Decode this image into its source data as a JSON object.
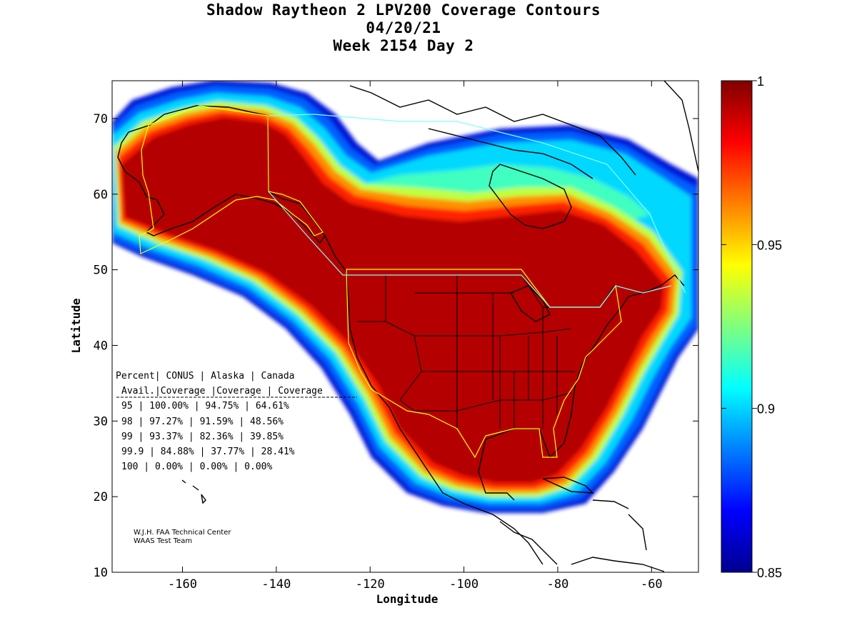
{
  "titles": {
    "line1": "Shadow Raytheon 2 LPV200 Coverage Contours",
    "line2": "04/20/21",
    "line3": "Week 2154 Day 2"
  },
  "axes": {
    "xlabel": "Longitude",
    "ylabel": "Latitude",
    "x_ticks": [
      "-160",
      "-140",
      "-120",
      "-100",
      "-80",
      "-60"
    ],
    "y_ticks": [
      "10",
      "20",
      "30",
      "40",
      "50",
      "60",
      "70"
    ],
    "xlim": [
      -175,
      -50
    ],
    "ylim": [
      10,
      75
    ]
  },
  "colorbar": {
    "min": 0.85,
    "max": 1,
    "labels": [
      "1",
      "0.95",
      "0.9",
      "0.85"
    ],
    "colormap": "jet"
  },
  "table": {
    "header1": [
      "Percent",
      "CONUS",
      "Alaska",
      "Canada"
    ],
    "header2": [
      "Avail.",
      "Coverage",
      "Coverage",
      "Coverage"
    ],
    "rows": [
      [
        "95",
        "100.00%",
        "94.75%",
        "64.61%"
      ],
      [
        "98",
        "97.27%",
        "91.59%",
        "48.56%"
      ],
      [
        "99",
        "93.37%",
        "82.36%",
        "39.85%"
      ],
      [
        "99.9",
        "84.88%",
        "37.77%",
        "28.41%"
      ],
      [
        "100",
        "0.00%",
        "0.00%",
        "0.00%"
      ]
    ]
  },
  "credits": {
    "line1": "W.J.H. FAA Technical Center",
    "line2": "WAAS Test Team"
  }
}
